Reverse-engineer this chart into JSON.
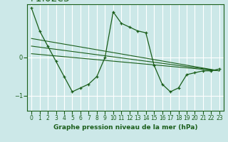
{
  "background_color": "#cce8e8",
  "grid_color": "#ffffff",
  "line_color": "#1a5e1a",
  "title": "Graphe pression niveau de la mer (hPa)",
  "xlabel": "",
  "ylabel": "",
  "ylim": [
    1018.6,
    1021.4
  ],
  "yticks": [
    1019,
    1020
  ],
  "xlim": [
    -0.5,
    23.5
  ],
  "xticks": [
    0,
    1,
    2,
    3,
    4,
    5,
    6,
    7,
    8,
    9,
    10,
    11,
    12,
    13,
    14,
    15,
    16,
    17,
    18,
    19,
    20,
    21,
    22,
    23
  ],
  "series": {
    "main": {
      "x": [
        0,
        1,
        2,
        3,
        4,
        5,
        6,
        7,
        8,
        9,
        10,
        11,
        12,
        13,
        14,
        15,
        16,
        17,
        18,
        19,
        20,
        21,
        22,
        23
      ],
      "y": [
        1021.3,
        1020.7,
        1020.3,
        1019.9,
        1019.5,
        1019.1,
        1019.2,
        1019.3,
        1019.5,
        1020.0,
        1021.2,
        1020.9,
        1020.8,
        1020.7,
        1020.65,
        1019.8,
        1019.3,
        1019.1,
        1019.2,
        1019.55,
        1019.6,
        1019.65,
        1019.65,
        1019.7
      ]
    },
    "line1": {
      "x": [
        0,
        23
      ],
      "y": [
        1020.5,
        1019.65
      ]
    },
    "line2": {
      "x": [
        0,
        23
      ],
      "y": [
        1020.3,
        1019.65
      ]
    },
    "line3": {
      "x": [
        0,
        23
      ],
      "y": [
        1020.1,
        1019.65
      ]
    }
  }
}
